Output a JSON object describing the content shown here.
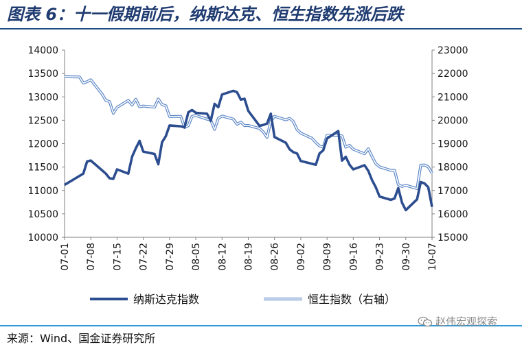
{
  "header": {
    "title": "图表 6：十一假期前后，纳斯达克、恒生指数先涨后跌"
  },
  "footer": {
    "source": "来源：Wind、国金证券研究所",
    "watermark": "赵伟宏观探索",
    "watermark_icon": "wechat-icon"
  },
  "colors": {
    "title": "#1f3b70",
    "nasdaq": "#2c4d8f",
    "hsi": "#5b86c6",
    "top_rule": "#1e4a86",
    "bottom_rule": "#2f9ad8"
  },
  "chart_data": {
    "type": "line",
    "title": "",
    "xlabel": "",
    "ylabel_left": "",
    "ylabel_right": "",
    "x_tick_labels": [
      "07-01",
      "07-08",
      "07-15",
      "07-22",
      "07-29",
      "08-05",
      "08-12",
      "08-19",
      "08-26",
      "09-02",
      "09-09",
      "09-16",
      "09-23",
      "09-30",
      "10-07"
    ],
    "x_range": [
      "07-01",
      "10-07"
    ],
    "y_left": {
      "range": [
        10000,
        14000
      ],
      "ticks": [
        10000,
        10500,
        11000,
        11500,
        12000,
        12500,
        13000,
        13500,
        14000
      ]
    },
    "y_right": {
      "range": [
        15000,
        23000
      ],
      "ticks": [
        15000,
        16000,
        17000,
        18000,
        19000,
        20000,
        21000,
        22000,
        23000
      ]
    },
    "grid": false,
    "legend_position": "bottom",
    "series": [
      {
        "name": "纳斯达克指数",
        "axis": "left",
        "style": "thick-solid",
        "points": [
          [
            "07-01",
            11120
          ],
          [
            "07-06",
            11360
          ],
          [
            "07-07",
            11620
          ],
          [
            "07-08",
            11640
          ],
          [
            "07-11",
            11430
          ],
          [
            "07-12",
            11360
          ],
          [
            "07-13",
            11260
          ],
          [
            "07-14",
            11250
          ],
          [
            "07-15",
            11450
          ],
          [
            "07-18",
            11360
          ],
          [
            "07-19",
            11720
          ],
          [
            "07-20",
            11900
          ],
          [
            "07-21",
            12060
          ],
          [
            "07-22",
            11830
          ],
          [
            "07-25",
            11780
          ],
          [
            "07-26",
            11560
          ],
          [
            "07-27",
            12030
          ],
          [
            "07-28",
            12160
          ],
          [
            "07-29",
            12390
          ],
          [
            "08-01",
            12370
          ],
          [
            "08-02",
            12350
          ],
          [
            "08-03",
            12670
          ],
          [
            "08-04",
            12720
          ],
          [
            "08-05",
            12660
          ],
          [
            "08-08",
            12640
          ],
          [
            "08-09",
            12490
          ],
          [
            "08-10",
            12850
          ],
          [
            "08-11",
            12780
          ],
          [
            "08-12",
            13050
          ],
          [
            "08-15",
            13130
          ],
          [
            "08-16",
            13100
          ],
          [
            "08-17",
            12940
          ],
          [
            "08-18",
            12960
          ],
          [
            "08-19",
            12700
          ],
          [
            "08-22",
            12380
          ],
          [
            "08-23",
            12400
          ],
          [
            "08-24",
            12430
          ],
          [
            "08-25",
            12640
          ],
          [
            "08-26",
            12140
          ],
          [
            "08-29",
            12020
          ],
          [
            "08-30",
            11880
          ],
          [
            "08-31",
            11820
          ],
          [
            "09-01",
            11790
          ],
          [
            "09-02",
            11630
          ],
          [
            "09-06",
            11550
          ],
          [
            "09-07",
            11790
          ],
          [
            "09-08",
            11860
          ],
          [
            "09-09",
            12110
          ],
          [
            "09-12",
            12270
          ],
          [
            "09-13",
            11640
          ],
          [
            "09-14",
            11720
          ],
          [
            "09-15",
            11550
          ],
          [
            "09-16",
            11450
          ],
          [
            "09-19",
            11540
          ],
          [
            "09-20",
            11420
          ],
          [
            "09-21",
            11220
          ],
          [
            "09-22",
            11070
          ],
          [
            "09-23",
            10870
          ],
          [
            "09-26",
            10800
          ],
          [
            "09-27",
            10830
          ],
          [
            "09-28",
            11050
          ],
          [
            "09-29",
            10740
          ],
          [
            "09-30",
            10580
          ],
          [
            "10-03",
            10810
          ],
          [
            "10-04",
            11180
          ],
          [
            "10-05",
            11150
          ],
          [
            "10-06",
            11070
          ],
          [
            "10-07",
            10650
          ]
        ]
      },
      {
        "name": "恒生指数（右轴）",
        "axis": "right",
        "style": "double-line",
        "points": [
          [
            "07-01",
            21860
          ],
          [
            "07-05",
            21850
          ],
          [
            "07-06",
            21590
          ],
          [
            "07-07",
            21650
          ],
          [
            "07-08",
            21730
          ],
          [
            "07-11",
            21120
          ],
          [
            "07-12",
            20850
          ],
          [
            "07-13",
            20800
          ],
          [
            "07-14",
            20300
          ],
          [
            "07-15",
            20550
          ],
          [
            "07-18",
            20850
          ],
          [
            "07-19",
            20650
          ],
          [
            "07-20",
            20900
          ],
          [
            "07-21",
            20580
          ],
          [
            "07-22",
            20610
          ],
          [
            "07-25",
            20560
          ],
          [
            "07-26",
            20910
          ],
          [
            "07-27",
            20670
          ],
          [
            "07-28",
            20620
          ],
          [
            "07-29",
            20160
          ],
          [
            "08-01",
            20170
          ],
          [
            "08-02",
            19690
          ],
          [
            "08-03",
            19770
          ],
          [
            "08-04",
            20170
          ],
          [
            "08-05",
            20200
          ],
          [
            "08-08",
            20050
          ],
          [
            "08-09",
            20000
          ],
          [
            "08-10",
            19610
          ],
          [
            "08-11",
            20080
          ],
          [
            "08-12",
            20180
          ],
          [
            "08-15",
            20050
          ],
          [
            "08-16",
            19830
          ],
          [
            "08-17",
            19920
          ],
          [
            "08-18",
            19770
          ],
          [
            "08-19",
            19780
          ],
          [
            "08-22",
            19650
          ],
          [
            "08-23",
            19500
          ],
          [
            "08-24",
            19270
          ],
          [
            "08-25",
            19970
          ],
          [
            "08-26",
            20170
          ],
          [
            "08-29",
            20020
          ],
          [
            "08-30",
            20080
          ],
          [
            "08-31",
            19950
          ],
          [
            "09-01",
            19600
          ],
          [
            "09-02",
            19450
          ],
          [
            "09-05",
            19230
          ],
          [
            "09-06",
            19050
          ],
          [
            "09-07",
            18900
          ],
          [
            "09-08",
            18850
          ],
          [
            "09-09",
            19360
          ],
          [
            "09-12",
            19360
          ],
          [
            "09-13",
            19330
          ],
          [
            "09-14",
            18850
          ],
          [
            "09-15",
            18930
          ],
          [
            "09-16",
            18760
          ],
          [
            "09-19",
            18570
          ],
          [
            "09-20",
            18780
          ],
          [
            "09-21",
            18450
          ],
          [
            "09-22",
            18150
          ],
          [
            "09-23",
            18010
          ],
          [
            "09-26",
            17860
          ],
          [
            "09-27",
            17860
          ],
          [
            "09-28",
            17250
          ],
          [
            "09-29",
            17170
          ],
          [
            "09-30",
            17220
          ],
          [
            "10-03",
            17080
          ],
          [
            "10-04",
            18080
          ],
          [
            "10-05",
            18090
          ],
          [
            "10-06",
            18010
          ],
          [
            "10-07",
            17740
          ]
        ]
      }
    ]
  }
}
